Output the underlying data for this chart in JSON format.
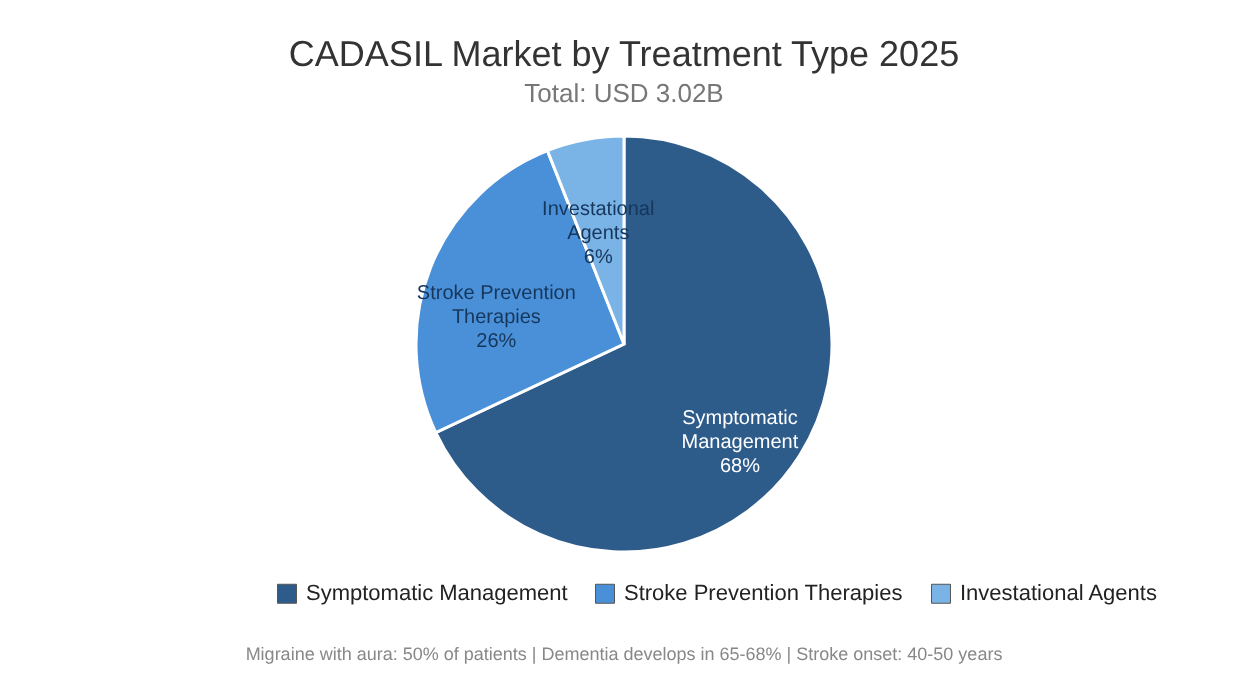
{
  "chart_data": {
    "type": "pie",
    "title": "CADASIL Market by Treatment Type 2025",
    "subtitle": "Total: USD 3.02B",
    "categories": [
      "Symptomatic Management",
      "Stroke Prevention Therapies",
      "Investational Agents"
    ],
    "values": [
      68,
      26,
      6
    ],
    "value_labels": [
      "68%",
      "26%",
      "6%"
    ],
    "colors": [
      "#2d5b8a",
      "#4a90d9",
      "#7ab3e6"
    ],
    "legend": "bottom",
    "annotations": [
      "Migraine with aura: 50% of patients | Dementia develops in 65-68% | Stroke onset: 40-50 years"
    ]
  }
}
